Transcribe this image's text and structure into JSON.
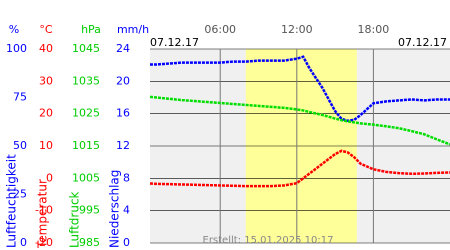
{
  "chart_data": {
    "type": "line",
    "date_left": "07.12.17",
    "date_right": "07.12.17",
    "created": "Erstellt: 15.01.2025 10:17",
    "xlim": [
      0.5,
      24
    ],
    "xticks": [
      {
        "value": 6,
        "label": "06:00"
      },
      {
        "value": 12,
        "label": "12:00"
      },
      {
        "value": 18,
        "label": "18:00"
      }
    ],
    "daylight": [
      8.0,
      16.7
    ],
    "grid": true,
    "axes": [
      {
        "unit": "%",
        "label": "Luftfeuchtigkeit",
        "color": "#0000ff",
        "lim": [
          0,
          100
        ],
        "ticks": [
          0,
          25,
          50,
          75,
          100
        ]
      },
      {
        "unit": "°C",
        "label": "Temperatur",
        "color": "#ff0000",
        "lim": [
          -20,
          40
        ],
        "ticks": [
          -20,
          -10,
          0,
          10,
          20,
          30,
          40
        ]
      },
      {
        "unit": "hPa",
        "label": "Luftdruck",
        "color": "#00cc00",
        "lim": [
          985,
          1045
        ],
        "ticks": [
          985,
          995,
          1005,
          1015,
          1025,
          1035,
          1045
        ]
      },
      {
        "unit": "mm/h",
        "label": "Niederschlag",
        "color": "#0000ff",
        "lim": [
          0,
          24
        ],
        "ticks": [
          0,
          4,
          8,
          12,
          16,
          20,
          24
        ]
      }
    ],
    "x": [
      0.5,
      1,
      2,
      3,
      4,
      5,
      6,
      7,
      8,
      9,
      10,
      11,
      12,
      12.5,
      13,
      14,
      15,
      15.5,
      16,
      16.5,
      17,
      18,
      19,
      20,
      21,
      22,
      23,
      24
    ],
    "series": [
      {
        "axis": 0,
        "color": "#0000ff",
        "values": [
          92,
          92,
          92.5,
          93,
          93,
          93,
          93,
          93.5,
          93.5,
          94,
          94,
          94,
          95,
          96,
          90,
          80,
          68,
          64,
          63,
          63.5,
          66,
          72,
          73,
          73.5,
          74,
          73.5,
          74,
          74
        ]
      },
      {
        "axis": 2,
        "color": "#00dd00",
        "values": [
          1030.2,
          1030,
          1029.6,
          1029.2,
          1028.9,
          1028.6,
          1028.3,
          1028,
          1027.7,
          1027.4,
          1027.1,
          1026.8,
          1026.3,
          1026,
          1025.5,
          1024.6,
          1023.5,
          1023,
          1022.6,
          1022.3,
          1022,
          1021.6,
          1021.1,
          1020.5,
          1019.6,
          1018.6,
          1017,
          1015.5
        ]
      },
      {
        "axis": 1,
        "color": "#ff0000",
        "values": [
          -1.6,
          -1.7,
          -1.8,
          -1.9,
          -2,
          -2.1,
          -2.2,
          -2.3,
          -2.4,
          -2.4,
          -2.4,
          -2.2,
          -1.5,
          0,
          1.5,
          4.5,
          7.5,
          8.5,
          8,
          6.5,
          4.5,
          2.8,
          2,
          1.6,
          1.4,
          1.5,
          1.7,
          1.8
        ]
      }
    ]
  }
}
